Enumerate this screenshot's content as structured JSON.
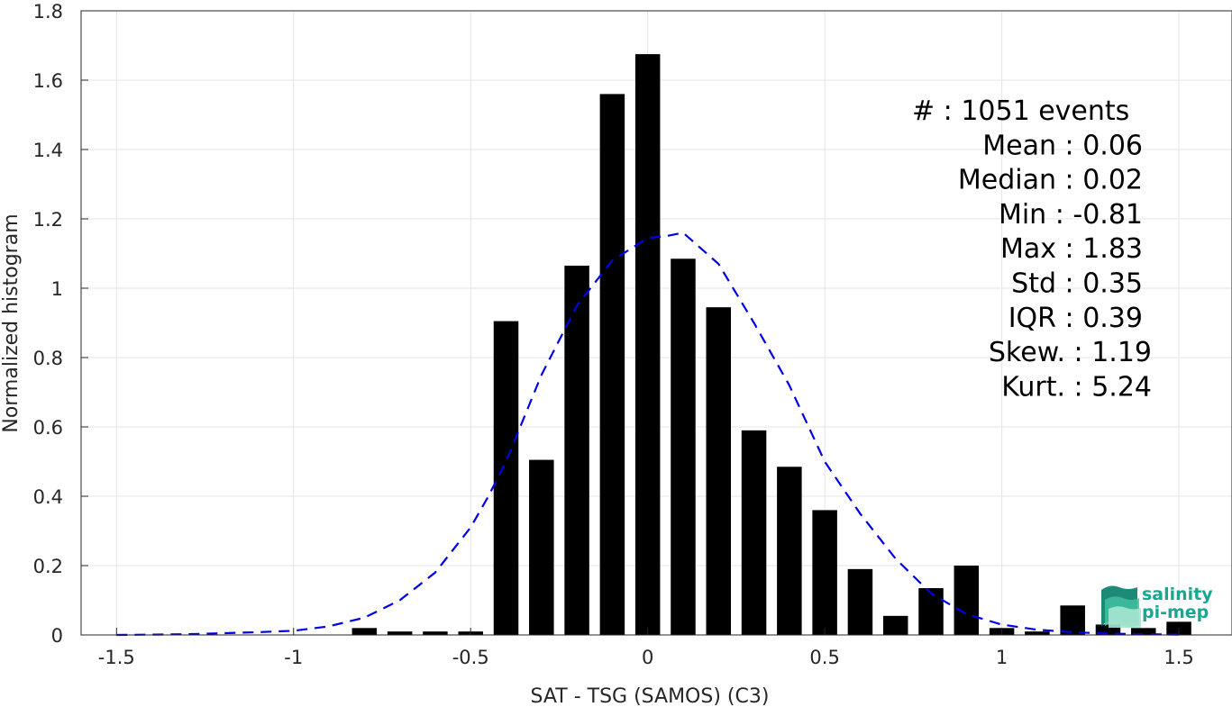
{
  "chart_data": {
    "type": "bar",
    "xlabel": "SAT - TSG (SAMOS) (C3)",
    "ylabel": "Normalized histogram",
    "xlim": [
      -1.6,
      1.65
    ],
    "ylim": [
      0,
      1.8
    ],
    "xticks": [
      -1.5,
      -1,
      -0.5,
      0,
      0.5,
      1,
      1.5
    ],
    "xtick_labels": [
      "-1.5",
      "-1",
      "-0.5",
      "0",
      "0.5",
      "1",
      "1.5"
    ],
    "yticks": [
      0,
      0.2,
      0.4,
      0.6,
      0.8,
      1,
      1.2,
      1.4,
      1.6,
      1.8
    ],
    "ytick_labels": [
      "0",
      "0.2",
      "0.4",
      "0.6",
      "0.8",
      "1",
      "1.2",
      "1.4",
      "1.6",
      "1.8"
    ],
    "grid": true,
    "bar_width": 0.07,
    "bar_color": "#000000",
    "bars": [
      {
        "x": -0.8,
        "y": 0.02
      },
      {
        "x": -0.7,
        "y": 0.01
      },
      {
        "x": -0.6,
        "y": 0.01
      },
      {
        "x": -0.5,
        "y": 0.01
      },
      {
        "x": -0.4,
        "y": 0.905
      },
      {
        "x": -0.3,
        "y": 0.505
      },
      {
        "x": -0.2,
        "y": 1.065
      },
      {
        "x": -0.1,
        "y": 1.56
      },
      {
        "x": 0.0,
        "y": 1.675
      },
      {
        "x": 0.1,
        "y": 1.085
      },
      {
        "x": 0.2,
        "y": 0.945
      },
      {
        "x": 0.3,
        "y": 0.59
      },
      {
        "x": 0.4,
        "y": 0.485
      },
      {
        "x": 0.5,
        "y": 0.36
      },
      {
        "x": 0.6,
        "y": 0.19
      },
      {
        "x": 0.7,
        "y": 0.055
      },
      {
        "x": 0.8,
        "y": 0.135
      },
      {
        "x": 0.9,
        "y": 0.2
      },
      {
        "x": 1.0,
        "y": 0.02
      },
      {
        "x": 1.1,
        "y": 0.01
      },
      {
        "x": 1.2,
        "y": 0.085
      },
      {
        "x": 1.3,
        "y": 0.03
      },
      {
        "x": 1.4,
        "y": 0.02
      },
      {
        "x": 1.5,
        "y": 0.038
      }
    ],
    "fit_curve": {
      "style": "dashed",
      "color": "#0000e6",
      "x": [
        -1.5,
        -1.3,
        -1.1,
        -1.0,
        -0.9,
        -0.8,
        -0.7,
        -0.6,
        -0.5,
        -0.45,
        -0.4,
        -0.3,
        -0.2,
        -0.1,
        0.0,
        0.05,
        0.1,
        0.2,
        0.3,
        0.4,
        0.5,
        0.6,
        0.7,
        0.8,
        0.9,
        1.0,
        1.1,
        1.2,
        1.3,
        1.4,
        1.5
      ],
      "y": [
        0.0,
        0.002,
        0.008,
        0.012,
        0.025,
        0.05,
        0.1,
        0.18,
        0.31,
        0.4,
        0.5,
        0.75,
        0.95,
        1.08,
        1.145,
        1.15,
        1.16,
        1.07,
        0.9,
        0.72,
        0.5,
        0.35,
        0.22,
        0.12,
        0.06,
        0.03,
        0.015,
        0.008,
        0.004,
        0.002,
        0.001
      ]
    },
    "stats": [
      {
        "text": "#  : 1051 events",
        "anchor": "start"
      },
      {
        "text": "Mean : 0.06",
        "anchor": "end"
      },
      {
        "text": "Median : 0.02",
        "anchor": "end"
      },
      {
        "text": "Min : -0.81",
        "anchor": "end"
      },
      {
        "text": "Max : 1.83",
        "anchor": "end"
      },
      {
        "text": "Std : 0.35",
        "anchor": "end"
      },
      {
        "text": "IQR : 0.39",
        "anchor": "end"
      },
      {
        "text": "Skew. : 1.19",
        "anchor": "end"
      },
      {
        "text": "Kurt. : 5.24",
        "anchor": "end"
      }
    ]
  },
  "logo": {
    "line1": "salinity",
    "line2": "pi-mep",
    "color": "#19a88f"
  }
}
